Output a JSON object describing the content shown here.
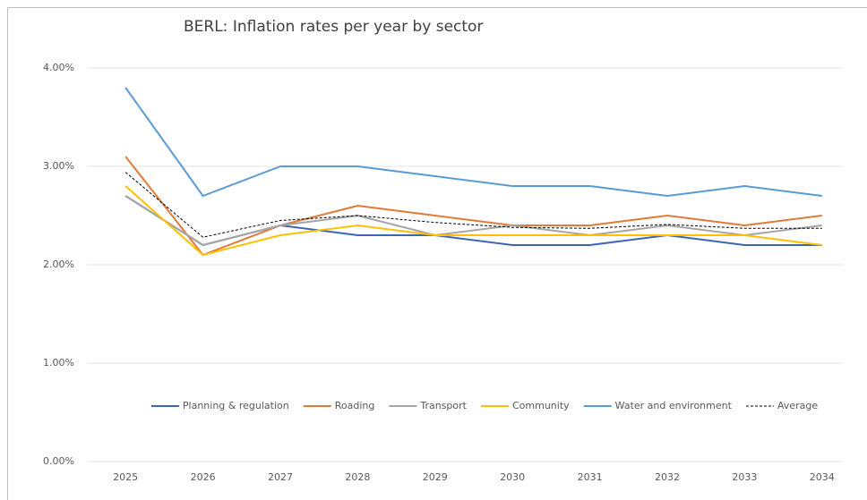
{
  "chart_data": {
    "type": "line",
    "title": "BERL: Inflation rates per year by sector",
    "categories": [
      "2025",
      "2026",
      "2027",
      "2028",
      "2029",
      "2030",
      "2031",
      "2032",
      "2033",
      "2034"
    ],
    "series": [
      {
        "name": "Planning & regulation",
        "color": "#3c66b1",
        "values": [
          2.7,
          2.2,
          2.4,
          2.3,
          2.3,
          2.2,
          2.2,
          2.3,
          2.2,
          2.2
        ]
      },
      {
        "name": "Roading",
        "color": "#e07b39",
        "values": [
          3.1,
          2.1,
          2.4,
          2.6,
          2.5,
          2.4,
          2.4,
          2.5,
          2.4,
          2.5
        ]
      },
      {
        "name": "Transport",
        "color": "#a5a5a5",
        "values": [
          2.7,
          2.2,
          2.4,
          2.5,
          2.3,
          2.4,
          2.3,
          2.4,
          2.3,
          2.4
        ]
      },
      {
        "name": "Community",
        "color": "#ffc000",
        "values": [
          2.8,
          2.1,
          2.3,
          2.4,
          2.3,
          2.3,
          2.3,
          2.3,
          2.3,
          2.2
        ]
      },
      {
        "name": "Water and environment",
        "color": "#5b9bd5",
        "values": [
          3.8,
          2.7,
          3.0,
          3.0,
          2.9,
          2.8,
          2.8,
          2.7,
          2.8,
          2.7
        ]
      },
      {
        "name": "Average",
        "color": "#000000",
        "dashed": true,
        "values": [
          2.94,
          2.28,
          2.45,
          2.5,
          2.43,
          2.38,
          2.37,
          2.41,
          2.37,
          2.37
        ]
      }
    ],
    "ylim": [
      0,
      4
    ],
    "yticks": [
      {
        "value": 0,
        "label": "0.00%"
      },
      {
        "value": 1,
        "label": "1.00%"
      },
      {
        "value": 2,
        "label": "2.00%"
      },
      {
        "value": 3,
        "label": "3.00%"
      },
      {
        "value": 4,
        "label": "4.00%"
      }
    ],
    "grid": true,
    "legend": "bottom"
  }
}
